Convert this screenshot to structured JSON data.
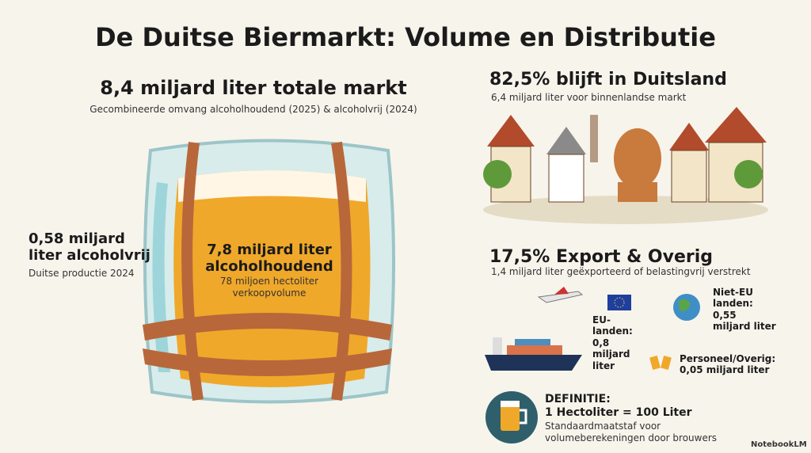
{
  "title": "De Duitse Biermarkt: Volume en Distributie",
  "total": {
    "heading": "8,4 miljard liter totale markt",
    "subtitle": "Gecombineerde omvang alcoholhoudend (2025) & alcoholvrij (2024)"
  },
  "alcoholfree": {
    "heading": "0,58 miljard liter alcoholvrij",
    "subtitle": "Duitse productie 2024"
  },
  "alcoholic": {
    "heading": "7,8 miljard liter alcoholhoudend",
    "subtitle": "78 miljoen hectoliter verkoopvolume"
  },
  "domestic": {
    "heading": "82,5% blijft in Duitsland",
    "subtitle": "6,4 miljard liter voor binnenlandse markt"
  },
  "export": {
    "heading": "17,5% Export & Overig",
    "subtitle": "1,4 miljard liter geëxporteerd of belastingvrij verstrekt",
    "items": [
      "EU-landen: 0,8 miljard liter",
      "Niet-EU landen: 0,55 miljard liter",
      "Personeel/Overig: 0,05 miljard liter"
    ]
  },
  "definition": {
    "label": "DEFINITIE:",
    "formula": "1 Hectoliter = 100 Liter",
    "text": "Standaardmaatstaf voor volumeberekeningen door brouwers"
  },
  "brand": "NotebookLM"
}
